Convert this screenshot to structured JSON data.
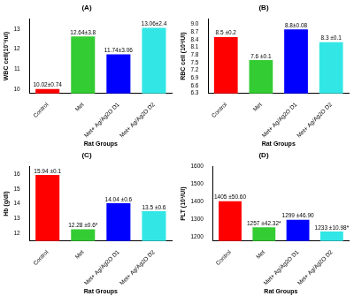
{
  "chart_data": [
    {
      "type": "bar",
      "title": "(A)",
      "x_label": "Rat Groups",
      "y_label": "WBC cell(10⁻³/ul)",
      "categories": [
        "Control",
        "Met",
        "Met+ Ag/Ag2O D1",
        "Met+ Ag/Ag2O D2"
      ],
      "values": [
        10.02,
        12.64,
        11.74,
        13.06
      ],
      "value_labels": [
        "10.02±0.74",
        "12.64±3.8",
        "11.74±3.06",
        "13.06±2.4"
      ],
      "colors": [
        "#ff0000",
        "#33cc33",
        "#0000ff",
        "#33e6e6"
      ],
      "ylim": [
        9.8,
        13.5
      ],
      "yticks": [
        10,
        11,
        12,
        13
      ],
      "grid": false,
      "data_labels": true
    },
    {
      "type": "bar",
      "title": "(B)",
      "x_label": "Rat Groups",
      "y_label": "RBC cell (10³/Ul)",
      "categories": [
        "Control",
        "Met",
        "Met+ Ag/Ag2O D1",
        "Met+ Ag/Ag2O D2"
      ],
      "values": [
        8.5,
        7.6,
        8.8,
        8.3
      ],
      "value_labels": [
        "8.5 ±0.2",
        "7.6 ±0.1",
        "8.8±0.08",
        "8.3 ±0.1"
      ],
      "colors": [
        "#ff0000",
        "#33cc33",
        "#0000ff",
        "#33e6e6"
      ],
      "ylim": [
        6.3,
        9.2
      ],
      "yticks": [
        6.3,
        6.6,
        6.9,
        7.2,
        7.5,
        7.8,
        8.1,
        8.4,
        8.7,
        {
          "value": 9,
          "label": "9.0"
        }
      ],
      "grid": false,
      "data_labels": true
    },
    {
      "type": "bar",
      "title": "(C)",
      "x_label": "Rat Groups",
      "y_label": "Hb (g/dl)",
      "categories": [
        "Control",
        "Met",
        "Met+ Ag/Ag2O D1",
        "Met+ Ag/Ag2O D2"
      ],
      "values": [
        15.94,
        12.28,
        14.04,
        13.5
      ],
      "value_labels": [
        "15.94 ±0.1",
        "12.28 ±0.6*",
        "14.04 ±0.6",
        "13.5 ±0.6"
      ],
      "colors": [
        "#ff0000",
        "#33cc33",
        "#0000ff",
        "#33e6e6"
      ],
      "ylim": [
        11.5,
        16.5
      ],
      "yticks": [
        12,
        13,
        14,
        15,
        16
      ],
      "grid": false,
      "data_labels": true
    },
    {
      "type": "bar",
      "title": "(D)",
      "x_label": "Rat Groups",
      "y_label": "PLT (10³/Ul)",
      "categories": [
        "Control",
        "Met",
        "Met+ Ag/Ag2O D1",
        "Met+ Ag/Ag2O D2"
      ],
      "values": [
        1405,
        1257,
        1299,
        1233
      ],
      "value_labels": [
        "1405 ±50.60",
        "1257 ±42.32*",
        "1299 ±46.90",
        "1233 ±10.98*"
      ],
      "colors": [
        "#ff0000",
        "#33cc33",
        "#0000ff",
        "#33e6e6"
      ],
      "ylim": [
        1180,
        1600
      ],
      "yticks": [
        1200,
        1300,
        1400,
        1500,
        1600
      ],
      "grid": false,
      "data_labels": true
    }
  ]
}
